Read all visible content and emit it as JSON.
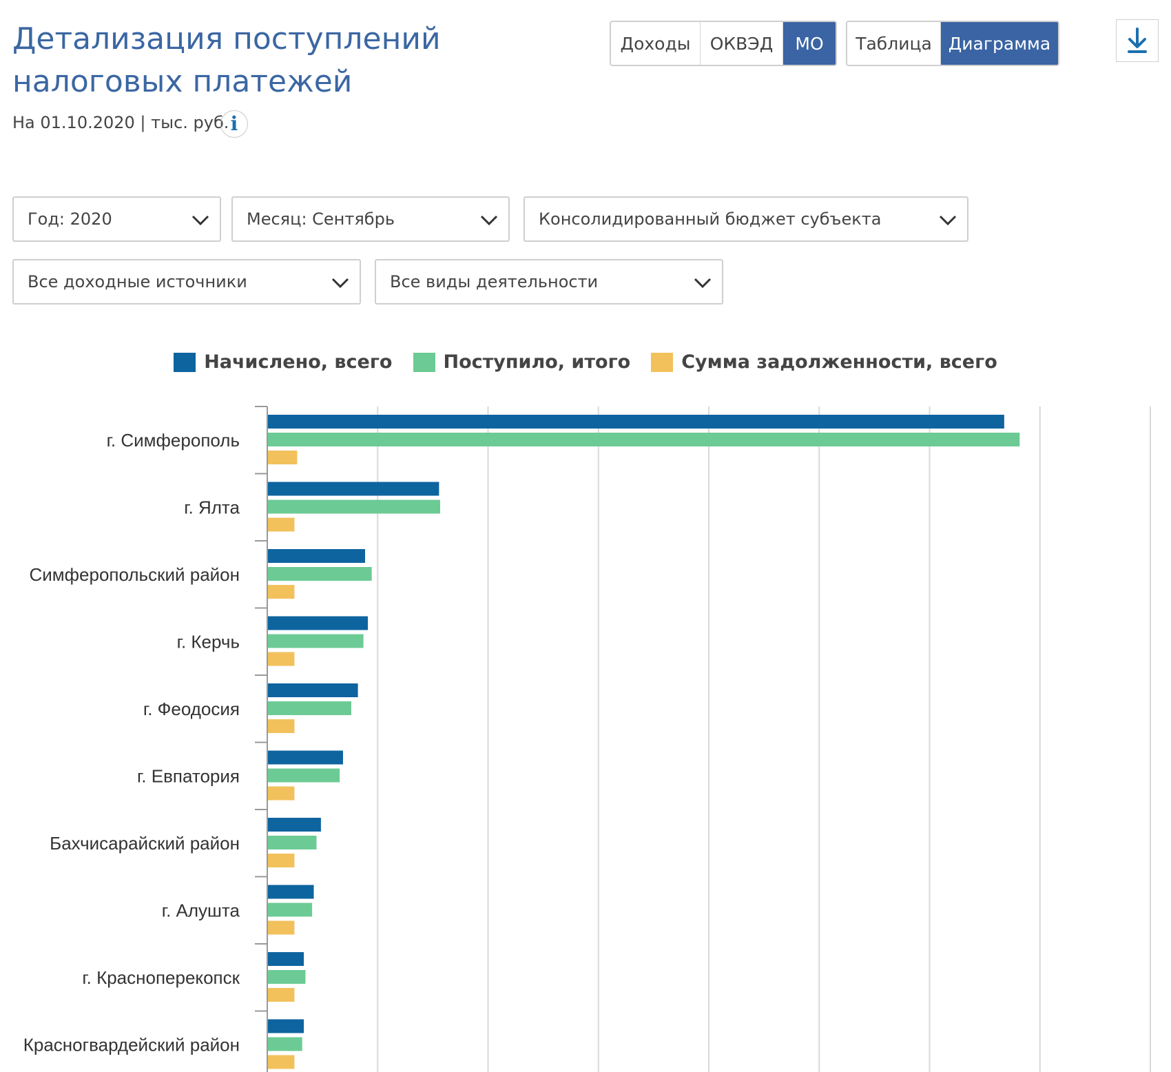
{
  "header": {
    "title": "Детализация поступлений налоговых платежей",
    "subtitle": "На 01.10.2020 | тыс. руб.",
    "info_icon_glyph": "i"
  },
  "view_toggle": {
    "dataset_options": [
      {
        "label": "Доходы",
        "active": false
      },
      {
        "label": "ОКВЭД",
        "active": false
      },
      {
        "label": "МО",
        "active": true
      }
    ],
    "display_options": [
      {
        "label": "Таблица",
        "active": false
      },
      {
        "label": "Диаграмма",
        "active": true
      }
    ],
    "download_icon": "download-icon"
  },
  "filters": {
    "year": "Год: 2020",
    "month": "Месяц: Сентябрь",
    "budget": "Консолидированный бюджет субъекта",
    "income_sources": "Все доходные источники",
    "activities": "Все виды деятельности"
  },
  "colors": {
    "accent": "#3a64a3",
    "series1": "#0e649f",
    "series2": "#6ccb94",
    "series3": "#f2c15c"
  },
  "chart_data": {
    "type": "bar",
    "orientation": "horizontal",
    "categories": [
      "г. Симферополь",
      "г. Ялта",
      "Симферопольский район",
      "г. Керчь",
      "г. Феодосия",
      "г. Евпатория",
      "Бахчисарайский район",
      "г. Алушта",
      "г. Красноперекопск",
      "Красногвардейский район"
    ],
    "series": [
      {
        "name": "Начислено, всего",
        "color": "#0e649f",
        "values": [
          6670,
          1550,
          880,
          905,
          815,
          680,
          480,
          415,
          325,
          325
        ]
      },
      {
        "name": "Поступило, итого",
        "color": "#6ccb94",
        "values": [
          6810,
          1560,
          940,
          865,
          755,
          650,
          440,
          400,
          340,
          310
        ]
      },
      {
        "name": "Сумма задолженности, всего",
        "color": "#f2c15c",
        "values": [
          265,
          240,
          240,
          240,
          240,
          240,
          240,
          240,
          240,
          240
        ]
      }
    ],
    "xlim": [
      0,
      8000
    ],
    "grid": true,
    "legend": "top-center"
  }
}
